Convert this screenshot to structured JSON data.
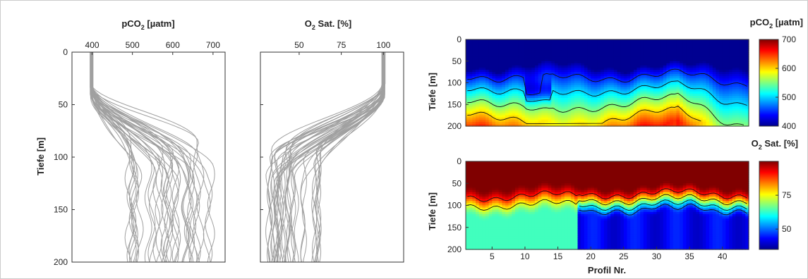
{
  "chart_data": [
    {
      "type": "line",
      "title": "pCO",
      "title_sub": "2",
      "title_unit": "[µatm]",
      "ylabel": "Tiefe [m]",
      "xlim": [
        350,
        730
      ],
      "ylim": [
        0,
        200
      ],
      "y_reversed": true,
      "x_ticks": [
        400,
        500,
        600,
        700
      ],
      "y_ticks": [
        0,
        50,
        100,
        150,
        200
      ],
      "profile_count": 40,
      "color": "#a0a0a0",
      "surface_range": [
        395,
        402
      ],
      "deep_range": [
        490,
        705
      ]
    },
    {
      "type": "line",
      "title": "O",
      "title_sub": "2",
      "title_unit": "Sat. [%]",
      "xlim": [
        27,
        112
      ],
      "ylim": [
        0,
        200
      ],
      "y_reversed": true,
      "x_ticks": [
        50,
        75,
        100
      ],
      "y_ticks": [
        0,
        50,
        100,
        150,
        200
      ],
      "profile_count": 40,
      "color": "#a0a0a0",
      "surface_range": [
        99,
        101
      ],
      "deep_range": [
        30,
        62
      ]
    },
    {
      "type": "heatmap",
      "title": "pCO",
      "title_sub": "2",
      "title_unit": "[µatm]",
      "ylabel": "Tiefe [m]",
      "xlim": [
        1,
        44
      ],
      "ylim": [
        0,
        200
      ],
      "y_ticks": [
        0,
        50,
        100,
        150,
        200
      ],
      "colorbar_range": [
        400,
        700
      ],
      "colorbar_ticks": [
        400,
        500,
        600,
        700
      ],
      "surface_value": 405,
      "deep_value_range": [
        560,
        690
      ],
      "colormap": "jet"
    },
    {
      "type": "heatmap",
      "title": "O",
      "title_sub": "2",
      "title_unit": "Sat. [%]",
      "ylabel": "Tiefe [m]",
      "xlabel": "Profil Nr.",
      "xlim": [
        1,
        44
      ],
      "ylim": [
        0,
        200
      ],
      "x_ticks": [
        5,
        10,
        15,
        20,
        25,
        30,
        35,
        40
      ],
      "y_ticks": [
        0,
        50,
        100,
        150,
        200
      ],
      "colorbar_range": [
        35,
        100
      ],
      "colorbar_ticks": [
        50,
        75
      ],
      "surface_value": 100,
      "deep_value_range": [
        38,
        68
      ],
      "colormap": "jet"
    }
  ]
}
